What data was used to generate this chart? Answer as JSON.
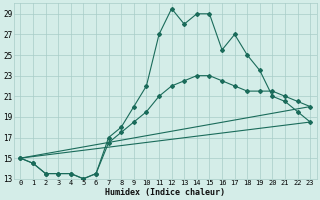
{
  "xlabel": "Humidex (Indice chaleur)",
  "bg_color": "#d4ede8",
  "grid_color": "#a8ccc8",
  "line_color": "#1a6b5a",
  "xlim": [
    -0.5,
    23.5
  ],
  "ylim": [
    13,
    30
  ],
  "xticks": [
    0,
    1,
    2,
    3,
    4,
    5,
    6,
    7,
    8,
    9,
    10,
    11,
    12,
    13,
    14,
    15,
    16,
    17,
    18,
    19,
    20,
    21,
    22,
    23
  ],
  "yticks": [
    13,
    15,
    17,
    19,
    21,
    23,
    25,
    27,
    29
  ],
  "line1_x": [
    0,
    1,
    2,
    3,
    4,
    5,
    6,
    7,
    8,
    9,
    10,
    11,
    12,
    13,
    14,
    15,
    16,
    17,
    18,
    19,
    20,
    21,
    22,
    23
  ],
  "line1_y": [
    15.0,
    14.5,
    13.5,
    13.5,
    13.5,
    13.0,
    13.5,
    17.0,
    18.0,
    20.0,
    22.0,
    27.0,
    29.5,
    28.0,
    29.0,
    29.0,
    25.5,
    27.0,
    25.0,
    23.5,
    21.0,
    20.5,
    19.5,
    18.5
  ],
  "line2_x": [
    0,
    1,
    2,
    3,
    4,
    5,
    6,
    7,
    8,
    9,
    10,
    11,
    12,
    13,
    14,
    15,
    16,
    17,
    18,
    19,
    20,
    21,
    22,
    23
  ],
  "line2_y": [
    15.0,
    14.5,
    13.5,
    13.5,
    13.5,
    13.0,
    13.5,
    16.5,
    17.5,
    18.5,
    19.5,
    21.0,
    22.0,
    22.5,
    23.0,
    23.0,
    22.5,
    22.0,
    21.5,
    21.5,
    21.5,
    21.0,
    20.5,
    20.0
  ],
  "line3_x": [
    0,
    23
  ],
  "line3_y": [
    15.0,
    20.0
  ],
  "line4_x": [
    0,
    23
  ],
  "line4_y": [
    15.0,
    18.5
  ]
}
